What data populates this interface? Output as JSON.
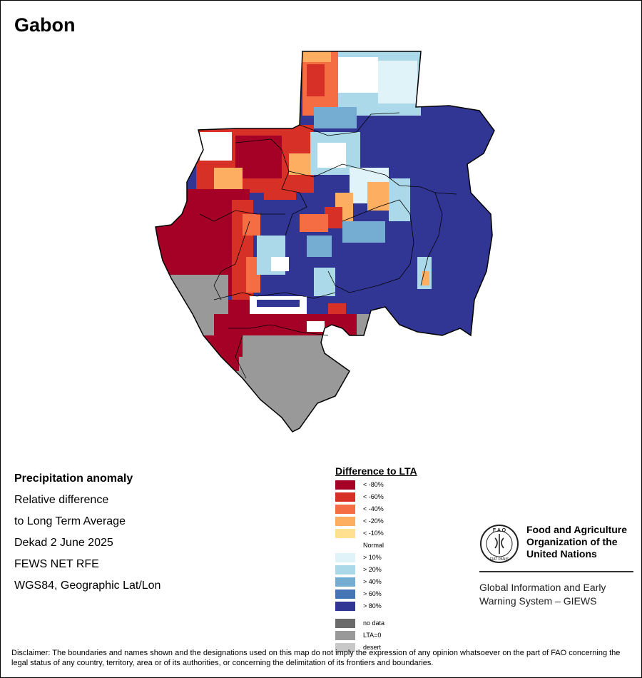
{
  "title": "Gabon",
  "info": {
    "heading": "Precipitation anomaly",
    "line1": "Relative difference",
    "line2": "to Long Term Average",
    "line3": "Dekad 2 June 2025",
    "line4": "FEWS NET RFE",
    "line5": "WGS84, Geographic Lat/Lon"
  },
  "legend": {
    "title": "Difference to LTA",
    "items": [
      {
        "label": "< -80%",
        "color": "#a50026"
      },
      {
        "label": "< -60%",
        "color": "#d73027"
      },
      {
        "label": "< -40%",
        "color": "#f46d43"
      },
      {
        "label": "< -20%",
        "color": "#fdae61"
      },
      {
        "label": "< -10%",
        "color": "#fee090"
      },
      {
        "label": "Normal",
        "color": "#ffffff"
      },
      {
        "label": "> 10%",
        "color": "#e0f3f8"
      },
      {
        "label": "> 20%",
        "color": "#abd9e9"
      },
      {
        "label": "> 40%",
        "color": "#74add1"
      },
      {
        "label": "> 60%",
        "color": "#4575b4"
      },
      {
        "label": "> 80%",
        "color": "#313695"
      }
    ],
    "extra": [
      {
        "label": "no data",
        "color": "#6b6b6b"
      },
      {
        "label": "LTA=0",
        "color": "#999999"
      },
      {
        "label": "desert",
        "color": "#c8c8c8"
      }
    ]
  },
  "fao": {
    "name_line1": "Food and Agriculture",
    "name_line2": "Organization of the",
    "name_line3": "United Nations",
    "logo_text_top": "F A O",
    "logo_text_bottom": "FIAT PANIS",
    "giews_line1": "Global Information and Early",
    "giews_line2": "Warning System – GIEWS"
  },
  "disclaimer": "Disclaimer: The boundaries and names shown and the designations used on this map do not imply the expression of any opinion whatsoever on the part of FAO concerning the legal status of any country, territory, area or of its authorities, or concerning the delimitation of its frontiers and boundaries."
}
